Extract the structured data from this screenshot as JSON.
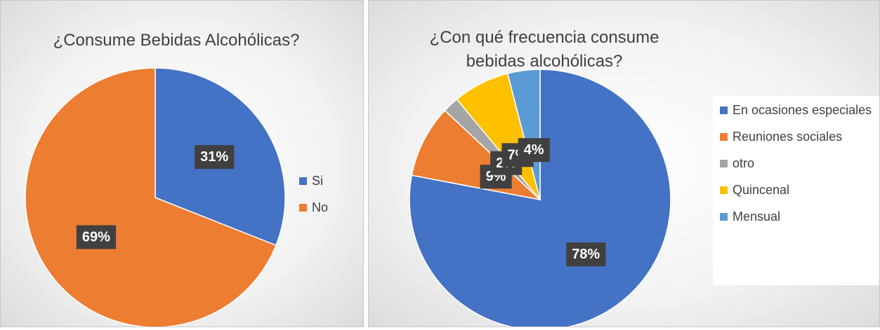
{
  "chart_data": [
    {
      "type": "pie",
      "title": "¿Consume Bebidas Alcohólicas?",
      "categories": [
        "Si",
        "No"
      ],
      "values": [
        31,
        69
      ],
      "value_labels": [
        "31%",
        "69%"
      ],
      "colors": [
        "#4472c4",
        "#ed7d31"
      ],
      "legend": "right"
    },
    {
      "type": "pie",
      "title": "¿Con qué frecuencia consume bebidas alcohólicas?",
      "categories": [
        "En ocasiones especiales",
        "Reuniones sociales",
        "otro",
        "Quincenal",
        "Mensual"
      ],
      "values": [
        78,
        9,
        2,
        7,
        4
      ],
      "value_labels": [
        "78%",
        "9%",
        "2%",
        "7%",
        "4%"
      ],
      "colors": [
        "#4472c4",
        "#ed7d31",
        "#a5a5a5",
        "#ffc000",
        "#5b9bd5"
      ],
      "legend": "right"
    }
  ]
}
